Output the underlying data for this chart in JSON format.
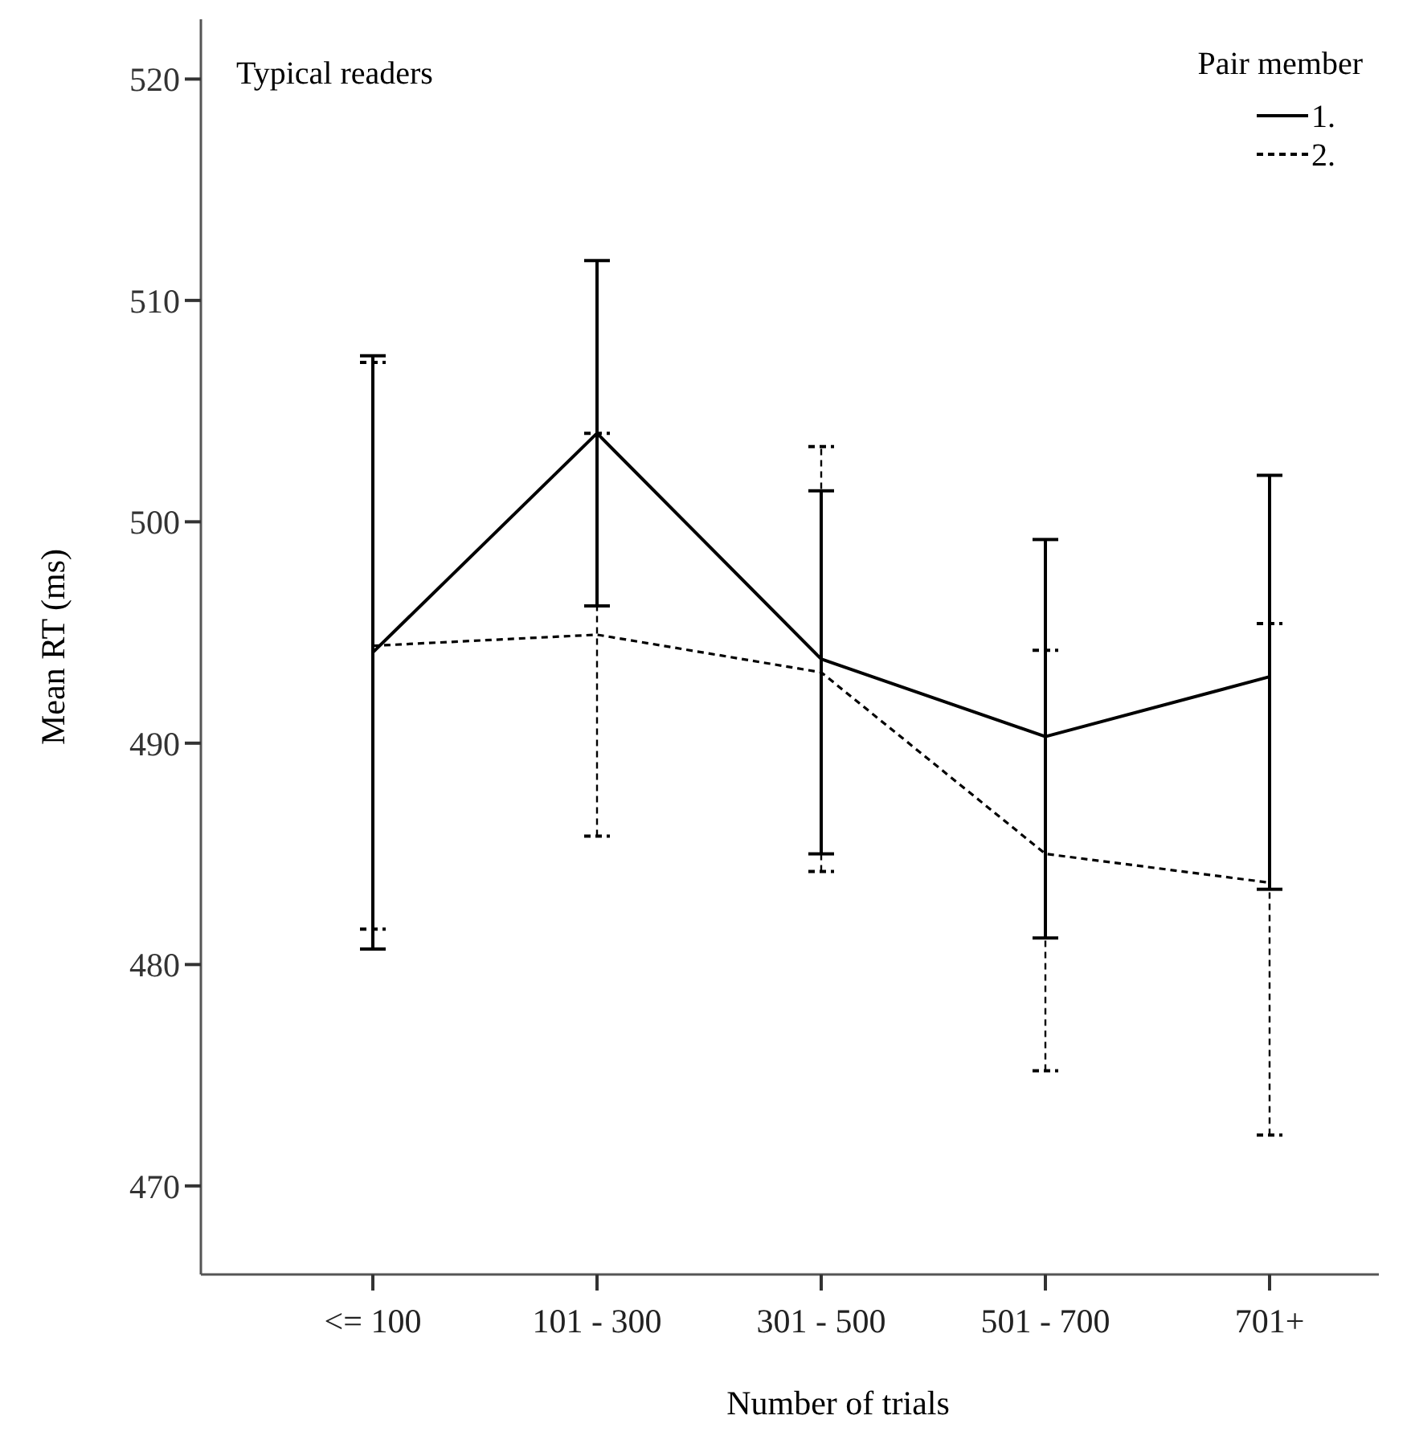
{
  "chart_data": {
    "type": "line",
    "xlabel": "Number of trials",
    "ylabel": "Mean RT (ms)",
    "legend_title": "Pair member",
    "legend": "top right",
    "annotations": [
      "Typical readers"
    ],
    "categories": [
      "<= 100",
      "101 - 300",
      "301 - 500",
      "501 - 700",
      "701+"
    ],
    "ylim": [
      466,
      522.7
    ],
    "yticks": [
      470,
      480,
      490,
      500,
      510,
      520
    ],
    "grid": false,
    "marker": "none",
    "series": [
      {
        "name": "1.",
        "color": "#000000",
        "line_style": "solid",
        "values": [
          494.1,
          504.0,
          493.8,
          490.3,
          493.0
        ],
        "errors": [
          [
            480.7,
            507.5
          ],
          [
            496.2,
            511.8
          ],
          [
            485.0,
            501.4
          ],
          [
            481.2,
            499.2
          ],
          [
            483.4,
            502.1
          ]
        ]
      },
      {
        "name": "2.",
        "color": "#000000",
        "line_style": "dashed",
        "values": [
          494.4,
          494.9,
          493.2,
          485.0,
          483.7
        ],
        "errors": [
          [
            481.6,
            507.2
          ],
          [
            485.8,
            504.0
          ],
          [
            484.2,
            503.4
          ],
          [
            475.2,
            494.2
          ],
          [
            472.3,
            495.4
          ]
        ]
      }
    ]
  }
}
